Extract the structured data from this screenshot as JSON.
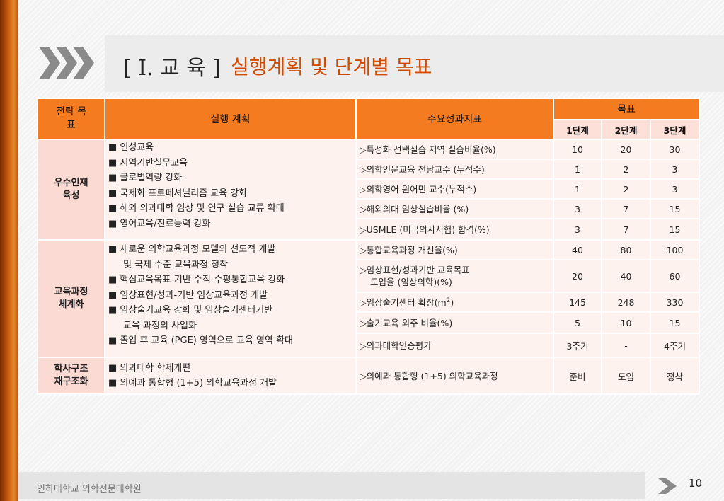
{
  "colors": {
    "accent": "#f47b1f",
    "title_sub": "#d04a00",
    "cat_bg": "#fadad2",
    "cell_bg": "#fdf2ee",
    "stage_bg": "#fde0d8"
  },
  "title": {
    "main": "[ I.  교 육 ]",
    "sub": "실행계획 및 단계별 목표"
  },
  "header": {
    "strategy": "전략 목표",
    "plan": "실행 계획",
    "kpi": "주요성과지표",
    "target": "목표",
    "stages": [
      "1단계",
      "2단계",
      "3단계"
    ]
  },
  "groups": [
    {
      "category": "우수인재 육성",
      "plans": [
        "■ 인성교육",
        "■ 지역기반실무교육",
        "■ 글로벌역량 강화",
        "■ 국제화 프로페셔널리즘 교육 강화",
        "■ 해외 의과대학 임상 및 연구 실습 교류 확대",
        "■ 영어교육/진료능력 강화"
      ],
      "kpis": [
        {
          "label": "▷특성화 선택실습 지역 실습비율(%)",
          "v1": "10",
          "v2": "20",
          "v3": "30"
        },
        {
          "label": "▷의학인문교육 전담교수 (누적수)",
          "v1": "1",
          "v2": "2",
          "v3": "3"
        },
        {
          "label": "▷의학영어 원어민 교수(누적수)",
          "v1": "1",
          "v2": "2",
          "v3": "3"
        },
        {
          "label": "▷해외의대 임상실습비율 (%)",
          "v1": "3",
          "v2": "7",
          "v3": "15"
        },
        {
          "label": "▷USMLE (미국의사시험) 합격(%)",
          "v1": "3",
          "v2": "7",
          "v3": "15"
        }
      ]
    },
    {
      "category": "교육과정 체계화",
      "plans": [
        "■ 새로운 의학교육과정 모델의 선도적 개발",
        "및 국제 수준 교육과정 정착",
        "■ 핵심교육목표-기반 수직-수평통합교육 강화",
        "■ 임상표현/성과-기반 임상교육과정 개발",
        "■ 임상술기교육 강화 및 임상술기센터기반",
        "교육 과정의 사업화",
        "■ 졸업 후 교육 (PGE) 영역으로 교육 영역 확대"
      ],
      "kpis": [
        {
          "label": "▷통합교육과정 개선율(%)",
          "v1": "40",
          "v2": "80",
          "v3": "100"
        },
        {
          "label": "▷임상표현/성과기반 교육목표",
          "label2": "도입율 (임상의학)(%)",
          "v1": "20",
          "v2": "40",
          "v3": "60"
        },
        {
          "label": "▷임상술기센터 확장(m",
          "sup": "2",
          "label_end": ")",
          "v1": "145",
          "v2": "248",
          "v3": "330"
        },
        {
          "label": "▷술기교육 외주 비율(%)",
          "v1": "5",
          "v2": "10",
          "v3": "15"
        },
        {
          "label": "▷의과대학인증평가",
          "v1": "3주기",
          "v2": "-",
          "v3": "4주기"
        }
      ]
    },
    {
      "category": "학사구조 재구조화",
      "plans": [
        "■ 의과대학 학제개편",
        "■ 의예과 통합형 (1+5) 의학교육과정 개발"
      ],
      "kpis": [
        {
          "label": "▷의예과 통합형 (1+5) 의학교육과정",
          "v1": "준비",
          "v2": "도입",
          "v3": "정착"
        }
      ]
    }
  ],
  "footer": {
    "school": "인하대학교 의학전문대학원",
    "page": "10"
  },
  "icons": {
    "title": "triple-chevron-icon",
    "footer": "chevron-right-icon"
  }
}
